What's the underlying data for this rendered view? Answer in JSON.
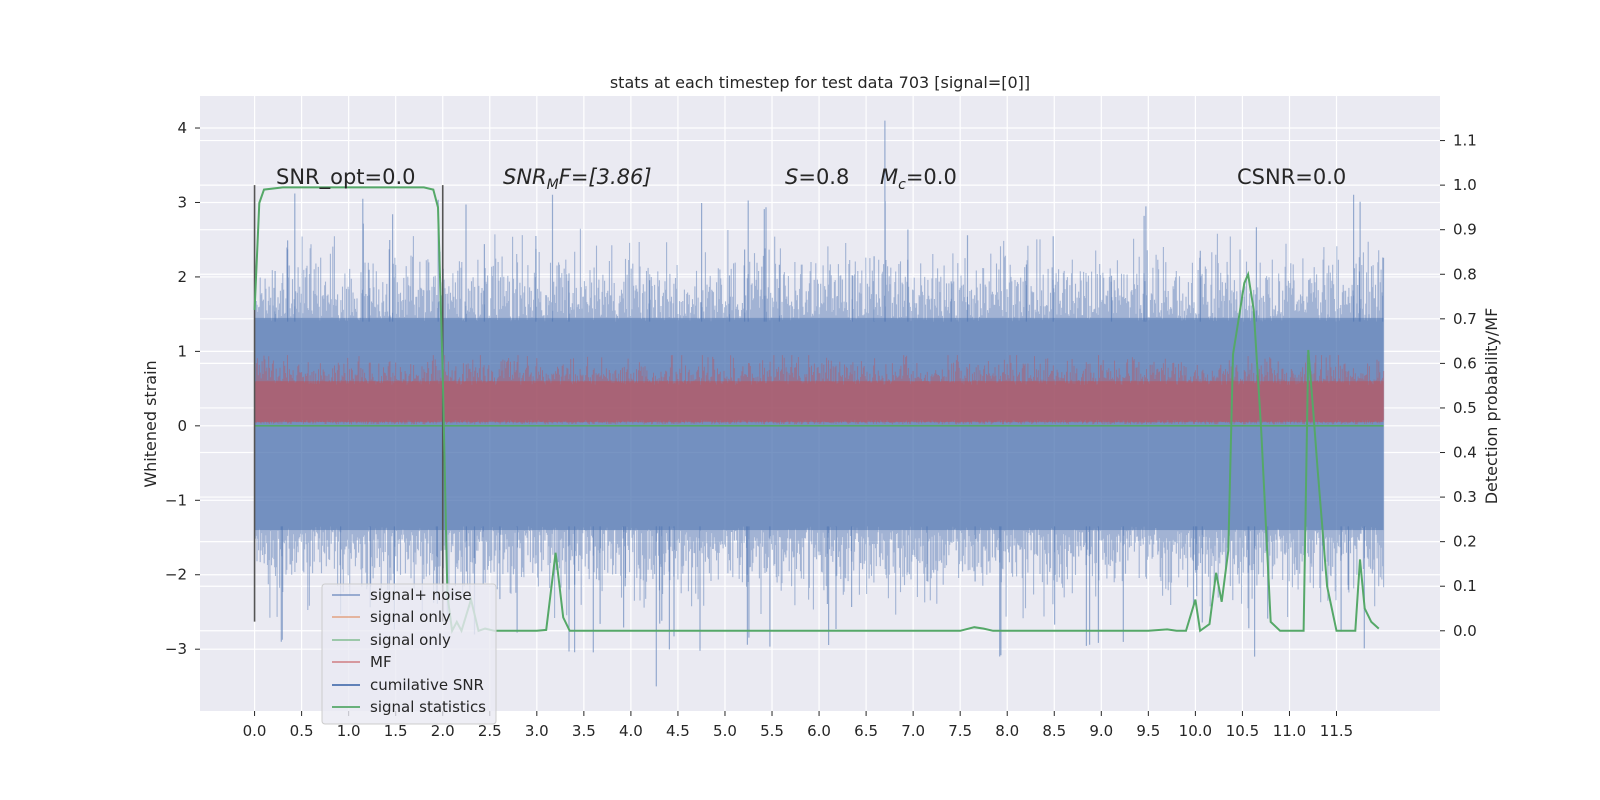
{
  "chart_data": {
    "type": "line",
    "title": "stats at each timestep for test data 703 [signal=[0]]",
    "ylabel": "Whitened strain",
    "ylabel_right": "Detection probability/MF",
    "x_ticks": [
      "0.0",
      "0.5",
      "1.0",
      "1.5",
      "2.0",
      "2.5",
      "3.0",
      "3.5",
      "4.0",
      "4.5",
      "5.0",
      "5.5",
      "6.0",
      "6.5",
      "7.0",
      "7.5",
      "8.0",
      "8.5",
      "9.0",
      "9.5",
      "10.0",
      "10.5",
      "11.0",
      "11.5"
    ],
    "y_ticks_left": [
      "4",
      "3",
      "2",
      "1",
      "0",
      "−1",
      "−2",
      "−3"
    ],
    "y_ticks_right": [
      "1.1",
      "1.0",
      "0.9",
      "0.8",
      "0.7",
      "0.6",
      "0.5",
      "0.4",
      "0.3",
      "0.2",
      "0.1",
      "0.0"
    ],
    "xlim": [
      -0.58,
      12.6
    ],
    "ylim_left": [
      -3.83,
      4.43
    ],
    "ylim_right": [
      -0.18,
      1.2
    ],
    "grid": true,
    "legend_position": "lower-left",
    "annotations": {
      "snr_opt": "SNR_opt=0.0",
      "snr_mf_base": "SNR",
      "snr_mf_sub": "M",
      "snr_mf_rest": "F=[3.86]",
      "s_var": "S",
      "s_val": "=0.8",
      "mc_var": "M",
      "mc_sub": "c",
      "mc_val": "=0.0",
      "csnr": "CSNR=0.0"
    },
    "colors": {
      "background": "#eaeaf2",
      "grid": "#ffffff",
      "signal_noise": "#4c72b0",
      "signal_only_orange": "#dd8452",
      "signal_only_green": "#55a868",
      "mf": "#c44e52",
      "cumulative_snr": "#4c72b0",
      "signal_statistics": "#55a868",
      "marker": "#555555"
    },
    "legend": [
      {
        "label": "signal+ noise",
        "color": "#4c72b0"
      },
      {
        "label": "signal only",
        "color": "#dd8452"
      },
      {
        "label": "signal only",
        "color": "#55a868"
      },
      {
        "label": "MF",
        "color": "#c44e52"
      },
      {
        "label": "cumilative SNR",
        "color": "#4c72b0"
      },
      {
        "label": "signal statistics",
        "color": "#55a868"
      }
    ],
    "series": [
      {
        "name": "signal statistics",
        "axis": "right",
        "x": [
          0.0,
          0.05,
          0.1,
          0.3,
          0.6,
          1.0,
          1.5,
          1.8,
          1.9,
          1.95,
          2.0,
          2.05,
          2.1,
          2.15,
          2.2,
          2.3,
          2.38,
          2.45,
          2.55,
          2.7,
          2.9,
          3.0,
          3.1,
          3.2,
          3.28,
          3.35,
          3.5,
          4.0,
          5.0,
          6.0,
          7.0,
          7.5,
          7.65,
          7.75,
          7.85,
          8.5,
          9.0,
          9.5,
          9.7,
          9.8,
          9.9,
          10.0,
          10.05,
          10.15,
          10.22,
          10.28,
          10.35,
          10.4,
          10.46,
          10.52,
          10.56,
          10.62,
          10.7,
          10.8,
          10.9,
          11.0,
          11.1,
          11.15,
          11.2,
          11.25,
          11.3,
          11.4,
          11.5,
          11.6,
          11.7,
          11.75,
          11.8,
          11.87,
          11.95
        ],
        "y": [
          0.72,
          0.96,
          0.99,
          0.995,
          0.995,
          0.995,
          0.995,
          0.995,
          0.99,
          0.95,
          0.58,
          0.08,
          0.0,
          0.02,
          0.0,
          0.07,
          0.0,
          0.005,
          0.0,
          0.0,
          0.0,
          0.0,
          0.002,
          0.175,
          0.03,
          0.0,
          0.0,
          0.0,
          0.0,
          0.0,
          0.0,
          0.0,
          0.008,
          0.005,
          0.0,
          0.0,
          0.0,
          0.0,
          0.003,
          0.0,
          0.0,
          0.07,
          0.0,
          0.015,
          0.13,
          0.065,
          0.18,
          0.62,
          0.7,
          0.78,
          0.8,
          0.72,
          0.45,
          0.02,
          0.0,
          0.0,
          0.0,
          0.0,
          0.63,
          0.5,
          0.36,
          0.1,
          0.0,
          0.0,
          0.0,
          0.16,
          0.05,
          0.02,
          0.005
        ]
      },
      {
        "name": "signal+ noise",
        "axis": "left",
        "x_range": [
          0.0,
          12.0
        ],
        "band": [
          -1.9,
          2.0
        ],
        "extremes": [
          -3.5,
          4.1
        ]
      },
      {
        "name": "MF",
        "axis": "left",
        "x_range": [
          0.0,
          12.0
        ],
        "band": [
          0.02,
          0.95
        ]
      },
      {
        "name": "signal only",
        "axis": "left",
        "constant": 0.0
      }
    ],
    "vertical_markers_x": [
      0.0,
      2.0
    ]
  }
}
